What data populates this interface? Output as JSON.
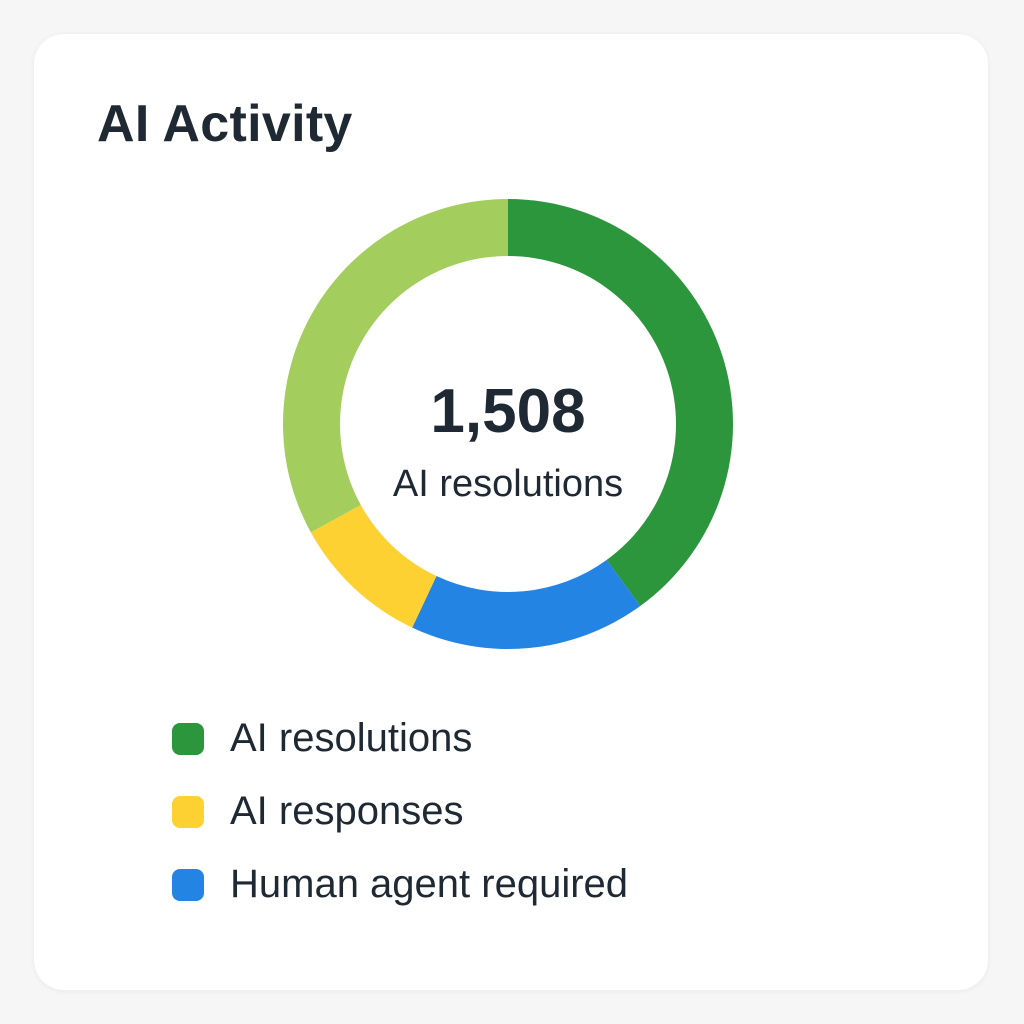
{
  "card": {
    "title": "AI Activity"
  },
  "colors": {
    "background": "#f6f6f6",
    "card": "#ffffff",
    "text": "#1f2933"
  },
  "chart_data": {
    "type": "pie",
    "donut": true,
    "center_value": "1,508",
    "center_label": "AI resolutions",
    "slices": [
      {
        "name": "AI resolutions",
        "value": 40,
        "color": "#2b963b",
        "in_legend": true
      },
      {
        "name": "Human agent required",
        "value": 17,
        "color": "#2384e3",
        "in_legend": true
      },
      {
        "name": "AI responses",
        "value": 10,
        "color": "#fdd131",
        "in_legend": true
      },
      {
        "name": "",
        "value": 33,
        "color": "#a3cd5d",
        "in_legend": false
      }
    ],
    "legend": {
      "placement": "bottom",
      "items": [
        {
          "label": "AI resolutions",
          "color": "#2b963b"
        },
        {
          "label": "AI responses",
          "color": "#fdd131"
        },
        {
          "label": "Human agent required",
          "color": "#2384e3"
        }
      ]
    }
  }
}
